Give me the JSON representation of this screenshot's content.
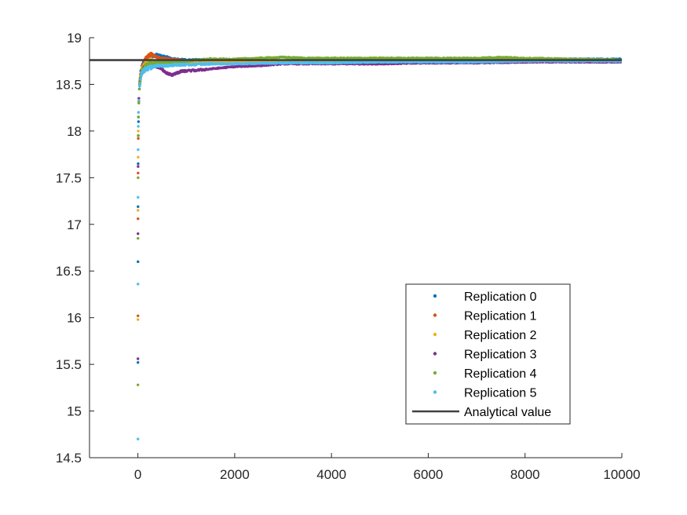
{
  "chart_data": {
    "type": "scatter",
    "title": "",
    "xlabel": "",
    "ylabel": "",
    "xlim": [
      -1000,
      10000
    ],
    "ylim": [
      14.5,
      19
    ],
    "x_ticks": [
      0,
      2000,
      4000,
      6000,
      8000,
      10000
    ],
    "x_tick_labels": [
      "0",
      "2000",
      "4000",
      "6000",
      "8000",
      "10000"
    ],
    "y_ticks": [
      14.5,
      15,
      15.5,
      16,
      16.5,
      17,
      17.5,
      18,
      18.5,
      19
    ],
    "y_tick_labels": [
      "14.5",
      "15",
      "15.5",
      "16",
      "16.5",
      "17",
      "17.5",
      "18",
      "18.5",
      "19"
    ],
    "grid": false,
    "legend_position": "bottom-right",
    "analytical_value": 18.76,
    "series": [
      {
        "name": "Replication 0",
        "color": "#0072BD",
        "points": [
          [
            1,
            15.52
          ],
          [
            2,
            16.6
          ],
          [
            3,
            17.19
          ],
          [
            5,
            17.65
          ],
          [
            8,
            17.95
          ],
          [
            12,
            18.1
          ],
          [
            20,
            18.3
          ],
          [
            30,
            18.45
          ],
          [
            50,
            18.6
          ],
          [
            80,
            18.68
          ],
          [
            120,
            18.74
          ],
          [
            200,
            18.78
          ],
          [
            300,
            18.8
          ],
          [
            400,
            18.82
          ],
          [
            500,
            18.8
          ],
          [
            600,
            18.79
          ],
          [
            700,
            18.77
          ],
          [
            1000,
            18.76
          ],
          [
            1500,
            18.76
          ],
          [
            2000,
            18.75
          ],
          [
            3000,
            18.75
          ],
          [
            4000,
            18.76
          ],
          [
            5000,
            18.76
          ],
          [
            6000,
            18.76
          ],
          [
            7000,
            18.76
          ],
          [
            8000,
            18.76
          ],
          [
            9000,
            18.77
          ],
          [
            10000,
            18.77
          ]
        ]
      },
      {
        "name": "Replication 1",
        "color": "#D95319",
        "points": [
          [
            1,
            16.02
          ],
          [
            2,
            17.06
          ],
          [
            4,
            17.55
          ],
          [
            7,
            17.92
          ],
          [
            12,
            18.15
          ],
          [
            20,
            18.32
          ],
          [
            35,
            18.5
          ],
          [
            60,
            18.62
          ],
          [
            100,
            18.7
          ],
          [
            150,
            18.76
          ],
          [
            200,
            18.8
          ],
          [
            280,
            18.82
          ],
          [
            400,
            18.79
          ],
          [
            600,
            18.77
          ],
          [
            800,
            18.76
          ],
          [
            1000,
            18.75
          ],
          [
            1500,
            18.75
          ],
          [
            2000,
            18.75
          ],
          [
            3000,
            18.75
          ],
          [
            4000,
            18.76
          ],
          [
            5000,
            18.76
          ],
          [
            6000,
            18.76
          ],
          [
            7000,
            18.76
          ],
          [
            8000,
            18.76
          ],
          [
            9000,
            18.76
          ],
          [
            10000,
            18.75
          ]
        ]
      },
      {
        "name": "Replication 2",
        "color": "#EDB120",
        "points": [
          [
            1,
            15.98
          ],
          [
            2,
            17.15
          ],
          [
            4,
            17.72
          ],
          [
            7,
            18.0
          ],
          [
            12,
            18.2
          ],
          [
            20,
            18.35
          ],
          [
            35,
            18.52
          ],
          [
            60,
            18.63
          ],
          [
            100,
            18.68
          ],
          [
            160,
            18.72
          ],
          [
            250,
            18.76
          ],
          [
            400,
            18.74
          ],
          [
            600,
            18.73
          ],
          [
            800,
            18.74
          ],
          [
            1000,
            18.74
          ],
          [
            1500,
            18.74
          ],
          [
            2000,
            18.74
          ],
          [
            3000,
            18.75
          ],
          [
            4000,
            18.75
          ],
          [
            5000,
            18.75
          ],
          [
            6000,
            18.75
          ],
          [
            7000,
            18.75
          ],
          [
            8000,
            18.75
          ],
          [
            9000,
            18.75
          ],
          [
            10000,
            18.75
          ]
        ]
      },
      {
        "name": "Replication 3",
        "color": "#7E2F8E",
        "points": [
          [
            1,
            15.56
          ],
          [
            2,
            16.9
          ],
          [
            4,
            17.62
          ],
          [
            7,
            17.95
          ],
          [
            12,
            18.15
          ],
          [
            20,
            18.35
          ],
          [
            35,
            18.5
          ],
          [
            60,
            18.6
          ],
          [
            100,
            18.66
          ],
          [
            200,
            18.7
          ],
          [
            300,
            18.7
          ],
          [
            450,
            18.68
          ],
          [
            600,
            18.62
          ],
          [
            700,
            18.6
          ],
          [
            900,
            18.64
          ],
          [
            1200,
            18.65
          ],
          [
            1600,
            18.67
          ],
          [
            2000,
            18.69
          ],
          [
            2500,
            18.7
          ],
          [
            3000,
            18.72
          ],
          [
            4000,
            18.72
          ],
          [
            5000,
            18.72
          ],
          [
            6000,
            18.73
          ],
          [
            7000,
            18.73
          ],
          [
            8000,
            18.74
          ],
          [
            9000,
            18.74
          ],
          [
            10000,
            18.74
          ]
        ]
      },
      {
        "name": "Replication 4",
        "color": "#77AC30",
        "points": [
          [
            1,
            15.28
          ],
          [
            2,
            16.85
          ],
          [
            4,
            17.5
          ],
          [
            7,
            17.95
          ],
          [
            12,
            18.15
          ],
          [
            20,
            18.3
          ],
          [
            35,
            18.45
          ],
          [
            60,
            18.58
          ],
          [
            100,
            18.66
          ],
          [
            160,
            18.7
          ],
          [
            250,
            18.72
          ],
          [
            400,
            18.73
          ],
          [
            600,
            18.74
          ],
          [
            1000,
            18.75
          ],
          [
            1500,
            18.77
          ],
          [
            2000,
            18.77
          ],
          [
            2500,
            18.78
          ],
          [
            3000,
            18.79
          ],
          [
            3500,
            18.78
          ],
          [
            4000,
            18.78
          ],
          [
            5000,
            18.78
          ],
          [
            6000,
            18.78
          ],
          [
            7000,
            18.78
          ],
          [
            7500,
            18.79
          ],
          [
            8000,
            18.78
          ],
          [
            9000,
            18.77
          ],
          [
            10000,
            18.76
          ]
        ]
      },
      {
        "name": "Replication 5",
        "color": "#4DBEEE",
        "points": [
          [
            1,
            14.7
          ],
          [
            2,
            16.36
          ],
          [
            3,
            17.29
          ],
          [
            5,
            17.8
          ],
          [
            8,
            18.05
          ],
          [
            12,
            18.2
          ],
          [
            20,
            18.33
          ],
          [
            35,
            18.48
          ],
          [
            60,
            18.58
          ],
          [
            100,
            18.64
          ],
          [
            160,
            18.66
          ],
          [
            250,
            18.68
          ],
          [
            400,
            18.7
          ],
          [
            600,
            18.7
          ],
          [
            800,
            18.71
          ],
          [
            1000,
            18.71
          ],
          [
            1500,
            18.72
          ],
          [
            2000,
            18.72
          ],
          [
            3000,
            18.73
          ],
          [
            4000,
            18.73
          ],
          [
            5000,
            18.74
          ],
          [
            6000,
            18.74
          ],
          [
            7000,
            18.74
          ],
          [
            8000,
            18.75
          ],
          [
            9000,
            18.75
          ],
          [
            10000,
            18.75
          ]
        ]
      }
    ],
    "reference_line": {
      "name": "Analytical value",
      "color": "#404040",
      "y": 18.76
    }
  }
}
